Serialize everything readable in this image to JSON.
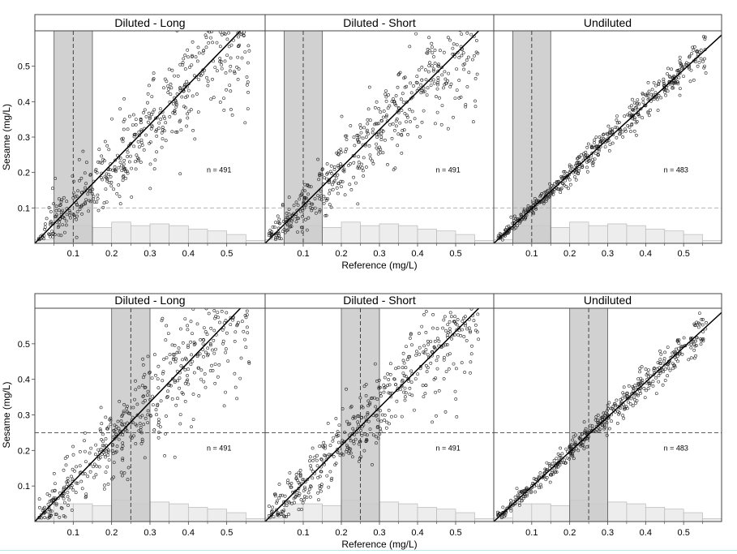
{
  "figure": {
    "x_label": "Reference (mg/L)",
    "y_label": "Sesame (mg/L)",
    "panel_titles": [
      "Diluted - Long",
      "Diluted - Short",
      "Undiluted"
    ],
    "x_ticks": [
      "0.1",
      "0.2",
      "0.3",
      "0.4",
      "0.5"
    ],
    "y_ticks": [
      "0.1",
      "0.2",
      "0.3",
      "0.4",
      "0.5"
    ]
  },
  "chart_data": [
    {
      "type": "scatter",
      "row": 1,
      "reference_line": 0.1,
      "shaded_band": [
        0.05,
        0.15
      ],
      "xlim": [
        0,
        0.6
      ],
      "ylim": [
        0,
        0.6
      ],
      "histogram_bins": [
        0,
        0.05,
        0.1,
        0.15,
        0.2,
        0.25,
        0.3,
        0.35,
        0.4,
        0.45,
        0.5,
        0.55,
        0.6
      ],
      "histogram_heights": [
        0.01,
        0.05,
        0.05,
        0.045,
        0.06,
        0.05,
        0.055,
        0.05,
        0.04,
        0.035,
        0.025,
        0.008
      ],
      "panels": [
        {
          "title": "Diluted - Long",
          "n_label": "n = 491",
          "n": 491,
          "slope": 1.12,
          "spread": 0.07,
          "seed": 11
        },
        {
          "title": "Diluted - Short",
          "n_label": "n = 491",
          "n": 491,
          "slope": 1.07,
          "spread": 0.06,
          "seed": 23
        },
        {
          "title": "Undiluted",
          "n_label": "n = 483",
          "n": 483,
          "slope": 0.98,
          "spread": 0.02,
          "seed": 37
        }
      ]
    },
    {
      "type": "scatter",
      "row": 2,
      "reference_line": 0.25,
      "shaded_band": [
        0.2,
        0.3
      ],
      "xlim": [
        0,
        0.6
      ],
      "ylim": [
        0,
        0.6
      ],
      "histogram_bins": [
        0,
        0.05,
        0.1,
        0.15,
        0.2,
        0.25,
        0.3,
        0.35,
        0.4,
        0.45,
        0.5,
        0.55,
        0.6
      ],
      "histogram_heights": [
        0.01,
        0.05,
        0.05,
        0.045,
        0.06,
        0.05,
        0.055,
        0.05,
        0.04,
        0.035,
        0.025,
        0.008
      ],
      "panels": [
        {
          "title": "Diluted - Long",
          "n_label": "n = 491",
          "n": 491,
          "slope": 1.12,
          "spread": 0.07,
          "seed": 101
        },
        {
          "title": "Diluted - Short",
          "n_label": "n = 491",
          "n": 491,
          "slope": 1.07,
          "spread": 0.06,
          "seed": 203
        },
        {
          "title": "Undiluted",
          "n_label": "n = 483",
          "n": 483,
          "slope": 0.98,
          "spread": 0.02,
          "seed": 307
        }
      ]
    }
  ]
}
